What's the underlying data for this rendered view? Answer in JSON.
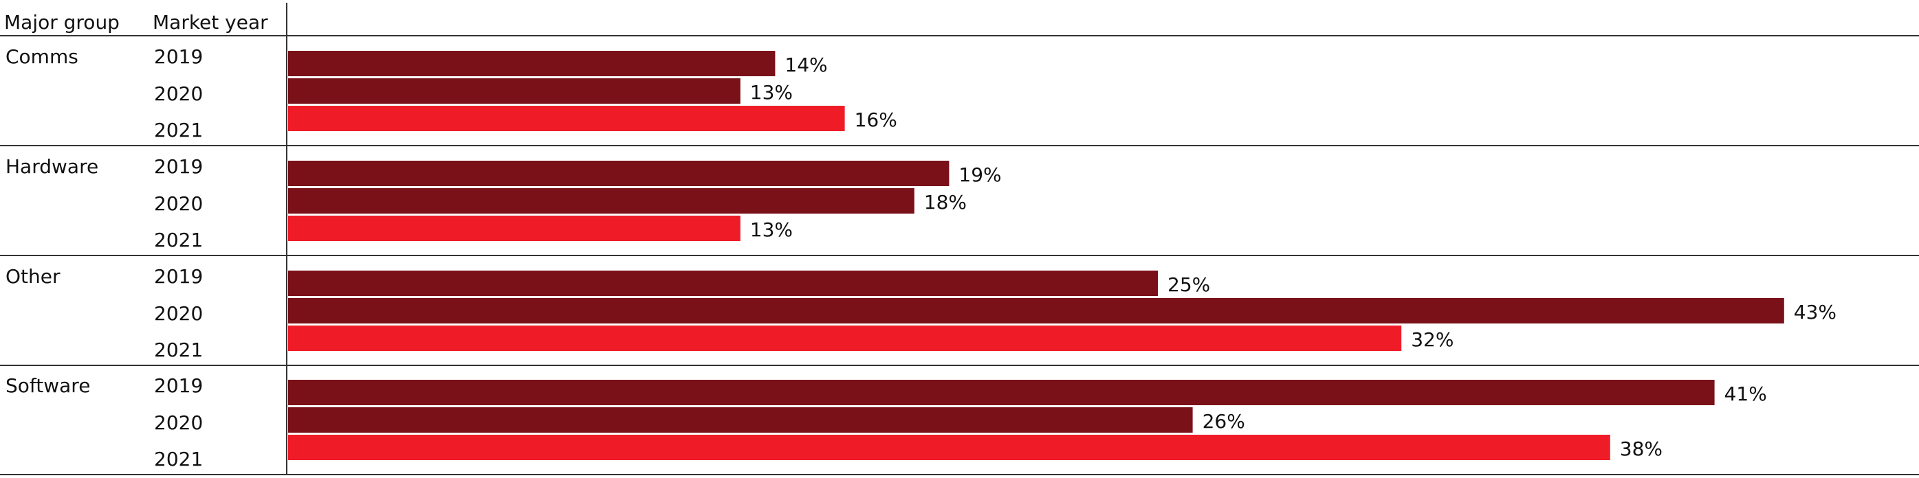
{
  "header": {
    "group_label": "Major group",
    "year_label": "Market year"
  },
  "colors": {
    "dark": "#7a1018",
    "bright": "#ef1c28",
    "rule": "#333333"
  },
  "chart_data": {
    "type": "bar",
    "orientation": "horizontal",
    "title": "",
    "xlabel": "",
    "ylabel": "",
    "xlim": [
      0,
      43
    ],
    "grid": false,
    "legend": "none",
    "value_unit": "%",
    "groups": [
      {
        "name": "Comms",
        "bars": [
          {
            "year": "2019",
            "value": 14
          },
          {
            "year": "2020",
            "value": 13
          },
          {
            "year": "2021",
            "value": 16
          }
        ]
      },
      {
        "name": "Hardware",
        "bars": [
          {
            "year": "2019",
            "value": 19
          },
          {
            "year": "2020",
            "value": 18
          },
          {
            "year": "2021",
            "value": 13
          }
        ]
      },
      {
        "name": "Other",
        "bars": [
          {
            "year": "2019",
            "value": 25
          },
          {
            "year": "2020",
            "value": 43
          },
          {
            "year": "2021",
            "value": 32
          }
        ]
      },
      {
        "name": "Software",
        "bars": [
          {
            "year": "2019",
            "value": 41
          },
          {
            "year": "2020",
            "value": 26
          },
          {
            "year": "2021",
            "value": 38
          }
        ]
      }
    ]
  }
}
